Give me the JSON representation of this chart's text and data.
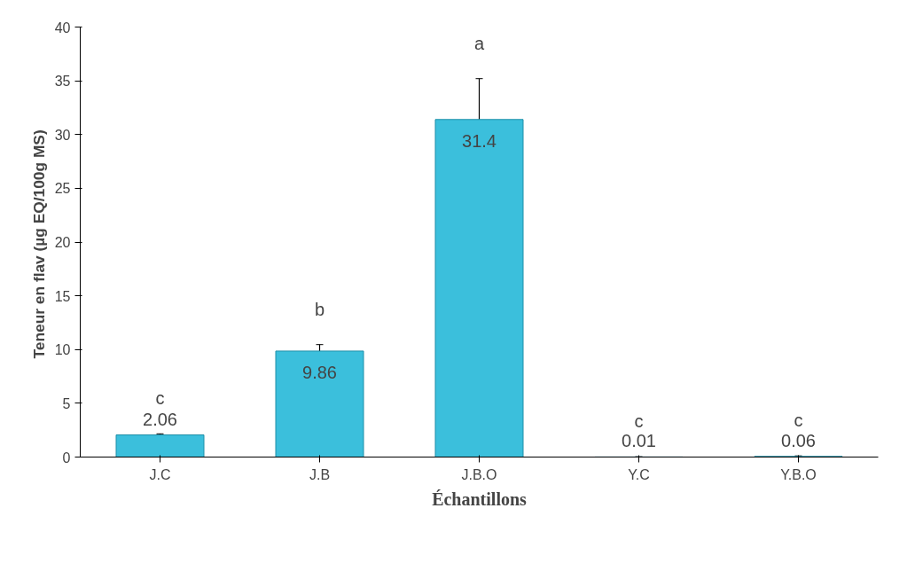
{
  "chart_data": {
    "type": "bar",
    "xlabel": "Échantillons",
    "ylabel": "Teneur en flav (µg  EQ/100g MS)",
    "categories": [
      "J.C",
      "J.B",
      "J.B.O",
      "Y.C",
      "Y.B.O"
    ],
    "values": [
      2.06,
      9.86,
      31.4,
      0.01,
      0.06
    ],
    "errors": [
      0.1,
      0.6,
      3.8,
      0.02,
      0.05
    ],
    "color": "#3bbfdc",
    "data_labels": true,
    "ylim": [
      0,
      40
    ],
    "yticks": [
      0,
      5,
      10,
      15,
      20,
      25,
      30,
      35,
      40
    ],
    "grid": false,
    "annotations": [
      "c",
      "b",
      "a",
      "c",
      "c"
    ]
  }
}
